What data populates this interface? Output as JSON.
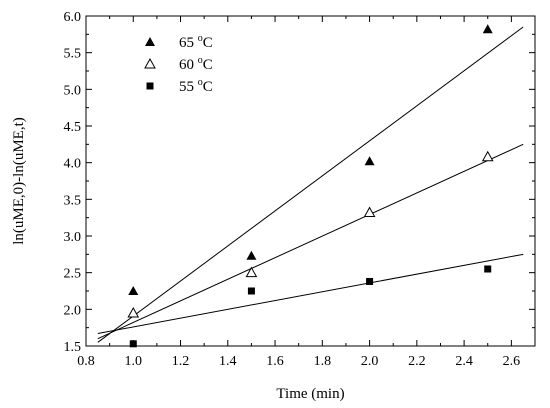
{
  "chart_data": {
    "type": "scatter",
    "xlabel": "Time (min)",
    "ylabel": "ln(uME,0)-ln(uME,t)",
    "xlim": [
      0.8,
      2.7
    ],
    "ylim": [
      1.5,
      6.0
    ],
    "x_ticks": [
      0.8,
      1.0,
      1.2,
      1.4,
      1.6,
      1.8,
      2.0,
      2.2,
      2.4,
      2.6
    ],
    "y_ticks": [
      1.5,
      2.0,
      2.5,
      3.0,
      3.5,
      4.0,
      4.5,
      5.0,
      5.5,
      6.0
    ],
    "x_tick_labels": [
      "0.8",
      "1.0",
      "1.2",
      "1.4",
      "1.6",
      "1.8",
      "2.0",
      "2.2",
      "2.4",
      "2.6"
    ],
    "y_tick_labels": [
      "1.5",
      "2.0",
      "2.5",
      "3.0",
      "3.5",
      "4.0",
      "4.5",
      "5.0",
      "5.5",
      "6.0"
    ],
    "legend_placement": "top-left",
    "grid": false,
    "series": [
      {
        "name": "65 °C",
        "label_main": "65 ",
        "label_sup": "o",
        "label_unit": "C",
        "marker": "triangle-filled",
        "color": "#000000",
        "x": [
          1.0,
          1.5,
          2.0,
          2.5
        ],
        "y": [
          2.25,
          2.73,
          4.02,
          5.82
        ],
        "fit_line": {
          "x": [
            0.85,
            2.65
          ],
          "y": [
            1.55,
            5.85
          ]
        }
      },
      {
        "name": "60 °C",
        "label_main": "60 ",
        "label_sup": "o",
        "label_unit": "C",
        "marker": "triangle-open",
        "color": "#000000",
        "x": [
          1.0,
          1.5,
          2.0,
          2.5
        ],
        "y": [
          1.95,
          2.5,
          3.32,
          4.08
        ],
        "fit_line": {
          "x": [
            0.85,
            2.65
          ],
          "y": [
            1.6,
            4.25
          ]
        }
      },
      {
        "name": "55 °C",
        "label_main": "55 ",
        "label_sup": "o",
        "label_unit": "C",
        "marker": "square-filled",
        "color": "#000000",
        "x": [
          1.0,
          1.5,
          2.0,
          2.5
        ],
        "y": [
          1.53,
          2.25,
          2.38,
          2.55
        ],
        "fit_line": {
          "x": [
            0.85,
            2.65
          ],
          "y": [
            1.67,
            2.75
          ]
        }
      }
    ]
  }
}
